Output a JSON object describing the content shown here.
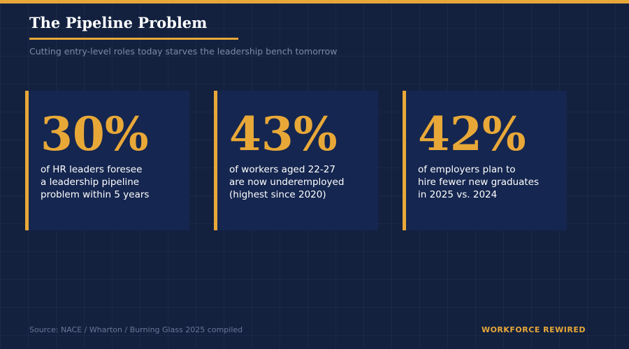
{
  "header": {
    "title": "The Pipeline Problem",
    "subtitle": "Cutting entry-level roles today starves the leadership bench tomorrow"
  },
  "stats": [
    {
      "value": "30%",
      "description": "of HR leaders foresee\na leadership pipeline\nproblem within 5 years"
    },
    {
      "value": "43%",
      "description": "of workers aged 22-27\nare now underemployed\n(highest since 2020)"
    },
    {
      "value": "42%",
      "description": "of employers plan to\nhire fewer new graduates\nin 2025 vs. 2024"
    }
  ],
  "footer": {
    "source": "Source: NACE / Wharton / Burning Glass 2025 compiled",
    "brand": "WORKFORCE REWIRED"
  },
  "colors": {
    "background": "#13213f",
    "card": "#152650",
    "accent": "#e8a838",
    "text": "#ffffff",
    "muted": "#7d8aa6"
  }
}
